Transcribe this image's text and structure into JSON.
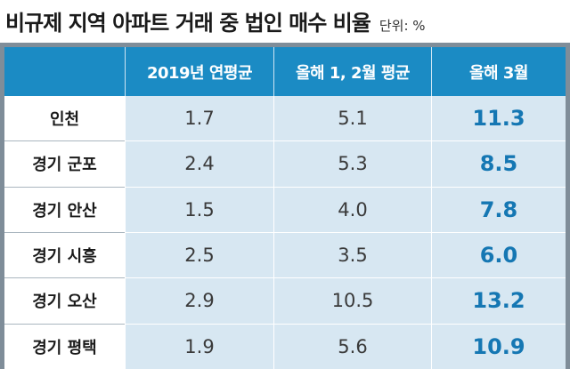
{
  "title": "비규제 지역 아파트 거래 중 법인 매수 비율",
  "unit_label": "단위: %",
  "chart_data": {
    "type": "table",
    "title": "비규제 지역 아파트 거래 중 법인 매수 비율",
    "unit": "단위: %",
    "columns": [
      "2019년 연평균",
      "올해 1, 2월 평균",
      "올해 3월"
    ],
    "rows": [
      {
        "label": "인천",
        "values": [
          "1.7",
          "5.1",
          "11.3"
        ]
      },
      {
        "label": "경기 군포",
        "values": [
          "2.4",
          "5.3",
          "8.5"
        ]
      },
      {
        "label": "경기 안산",
        "values": [
          "1.5",
          "4.0",
          "7.8"
        ]
      },
      {
        "label": "경기 시흥",
        "values": [
          "2.5",
          "3.5",
          "6.0"
        ]
      },
      {
        "label": "경기 오산",
        "values": [
          "2.9",
          "10.5",
          "13.2"
        ]
      },
      {
        "label": "경기 평택",
        "values": [
          "1.9",
          "5.6",
          "10.9"
        ]
      }
    ]
  },
  "colors": {
    "header_bg": "#1b8bc4",
    "cell_bg": "#d7e7f2",
    "highlight_text": "#1577b3",
    "frame": "#7f8d99"
  }
}
